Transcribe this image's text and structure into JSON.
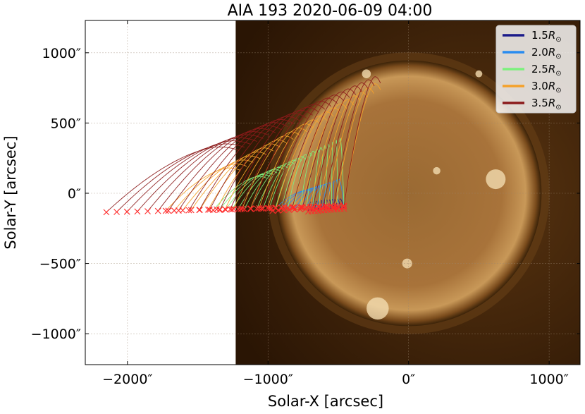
{
  "chart_data": {
    "type": "line",
    "title": "AIA 193 2020-06-09 04:00",
    "xlabel": "Solar-X [arcsec]",
    "ylabel": "Solar-Y [arcsec]",
    "xlim": [
      -2300,
      1220
    ],
    "ylim": [
      -1220,
      1230
    ],
    "x_ticks": [
      -2000,
      -1000,
      0,
      1000
    ],
    "y_ticks": [
      -1000,
      -500,
      0,
      500,
      1000
    ],
    "x_tick_labels": [
      "−2000″",
      "−1000″",
      "0″",
      "1000″"
    ],
    "y_tick_labels": [
      "−1000″",
      "−500″",
      "0″",
      "500″",
      "1000″"
    ],
    "grid": true,
    "legend_position": "top-right",
    "image": {
      "name": "AIA 193 solar disk",
      "x_range": [
        -1230,
        1220
      ],
      "y_range": [
        -1220,
        1230
      ],
      "solar_radius_arcsec": 946,
      "color": "#8a5a22"
    },
    "series": [
      {
        "name": "1.5R⊙",
        "legend_label": "1.5",
        "color": "#1b1b8a",
        "end_y_range": [
          -110,
          -130
        ],
        "start_x_range": [
          -490,
          -690
        ],
        "top_y_range": [
          -40,
          -60
        ],
        "lines": 12
      },
      {
        "name": "2.0R⊙",
        "legend_label": "2.0",
        "color": "#2a8cf0",
        "end_y_range": [
          -95,
          -125
        ],
        "start_x_range": [
          -500,
          -690
        ],
        "top_y_range": [
          100,
          20
        ],
        "lines": 14
      },
      {
        "name": "2.5R⊙",
        "legend_label": "2.5",
        "color": "#7df07d",
        "end_y_range": [
          -90,
          -120
        ],
        "start_x_range": [
          -490,
          -1010
        ],
        "top_y_range": [
          390,
          120
        ],
        "lines": 22
      },
      {
        "name": "3.0R⊙",
        "legend_label": "3.0",
        "color": "#f5a12a",
        "end_y_range": [
          -90,
          -125
        ],
        "start_x_range": [
          -200,
          -1200
        ],
        "top_y_range": [
          780,
          180
        ],
        "lines": 22
      },
      {
        "name": "3.5R⊙",
        "legend_label": "3.5",
        "color": "#8b1a1a",
        "end_y_range": [
          -95,
          -135
        ],
        "start_x_range": [
          -200,
          -1210
        ],
        "top_y_range": [
          830,
          330
        ],
        "lines": 24
      }
    ],
    "footpoints": {
      "marker": "x",
      "color": "#ff2a2a",
      "x_range": [
        -2150,
        -460
      ],
      "y_range": [
        -140,
        -80
      ]
    },
    "legend_r_symbol": "R",
    "legend_sun_symbol": "⊙"
  }
}
